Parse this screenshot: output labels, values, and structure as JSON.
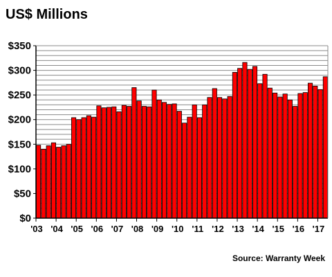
{
  "header": {
    "title": "US$ Millions"
  },
  "footer": {
    "source": "Source: Warranty Week"
  },
  "chart_data": {
    "type": "bar",
    "title": "US$ Millions",
    "xlabel": "",
    "ylabel": "",
    "ylim": [
      0,
      350
    ],
    "y_ticks": [
      0,
      50,
      100,
      150,
      200,
      250,
      300,
      350
    ],
    "y_tick_labels": [
      "$0",
      "$50",
      "$100",
      "$150",
      "$200",
      "$250",
      "$300",
      "$350"
    ],
    "x_tick_labels": [
      "'03",
      "'04",
      "'05",
      "'06",
      "'07",
      "'08",
      "'09",
      "'10",
      "'11",
      "'12",
      "'13",
      "'14",
      "'15",
      "'16",
      "'17"
    ],
    "grid": true,
    "legend": "none",
    "colors": {
      "bar": "#ff0000",
      "bar_edge": "#000000",
      "grid": "#8a8a8a",
      "axis": "#000000"
    },
    "categories": [
      "2003 Q1",
      "2003 Q2",
      "2003 Q3",
      "2003 Q4",
      "2004 Q1",
      "2004 Q2",
      "2004 Q3",
      "2004 Q4",
      "2005 Q1",
      "2005 Q2",
      "2005 Q3",
      "2005 Q4",
      "2006 Q1",
      "2006 Q2",
      "2006 Q3",
      "2006 Q4",
      "2007 Q1",
      "2007 Q2",
      "2007 Q3",
      "2007 Q4",
      "2008 Q1",
      "2008 Q2",
      "2008 Q3",
      "2008 Q4",
      "2009 Q1",
      "2009 Q2",
      "2009 Q3",
      "2009 Q4",
      "2010 Q1",
      "2010 Q2",
      "2010 Q3",
      "2010 Q4",
      "2011 Q1",
      "2011 Q2",
      "2011 Q3",
      "2011 Q4",
      "2012 Q1",
      "2012 Q2",
      "2012 Q3",
      "2012 Q4",
      "2013 Q1",
      "2013 Q2",
      "2013 Q3",
      "2013 Q4",
      "2014 Q1",
      "2014 Q2",
      "2014 Q3",
      "2014 Q4",
      "2015 Q1",
      "2015 Q2",
      "2015 Q3",
      "2015 Q4",
      "2016 Q1",
      "2016 Q2",
      "2016 Q3",
      "2016 Q4",
      "2017 Q1",
      "2017 Q2"
    ],
    "values": [
      148,
      140,
      147,
      153,
      144,
      147,
      150,
      204,
      200,
      204,
      208,
      205,
      228,
      224,
      225,
      226,
      216,
      229,
      227,
      265,
      238,
      227,
      226,
      260,
      240,
      235,
      231,
      232,
      217,
      193,
      205,
      230,
      204,
      230,
      245,
      263,
      245,
      242,
      247,
      296,
      304,
      316,
      302,
      308,
      273,
      292,
      264,
      254,
      246,
      252,
      240,
      227,
      253,
      255,
      274,
      268,
      261,
      287
    ]
  }
}
